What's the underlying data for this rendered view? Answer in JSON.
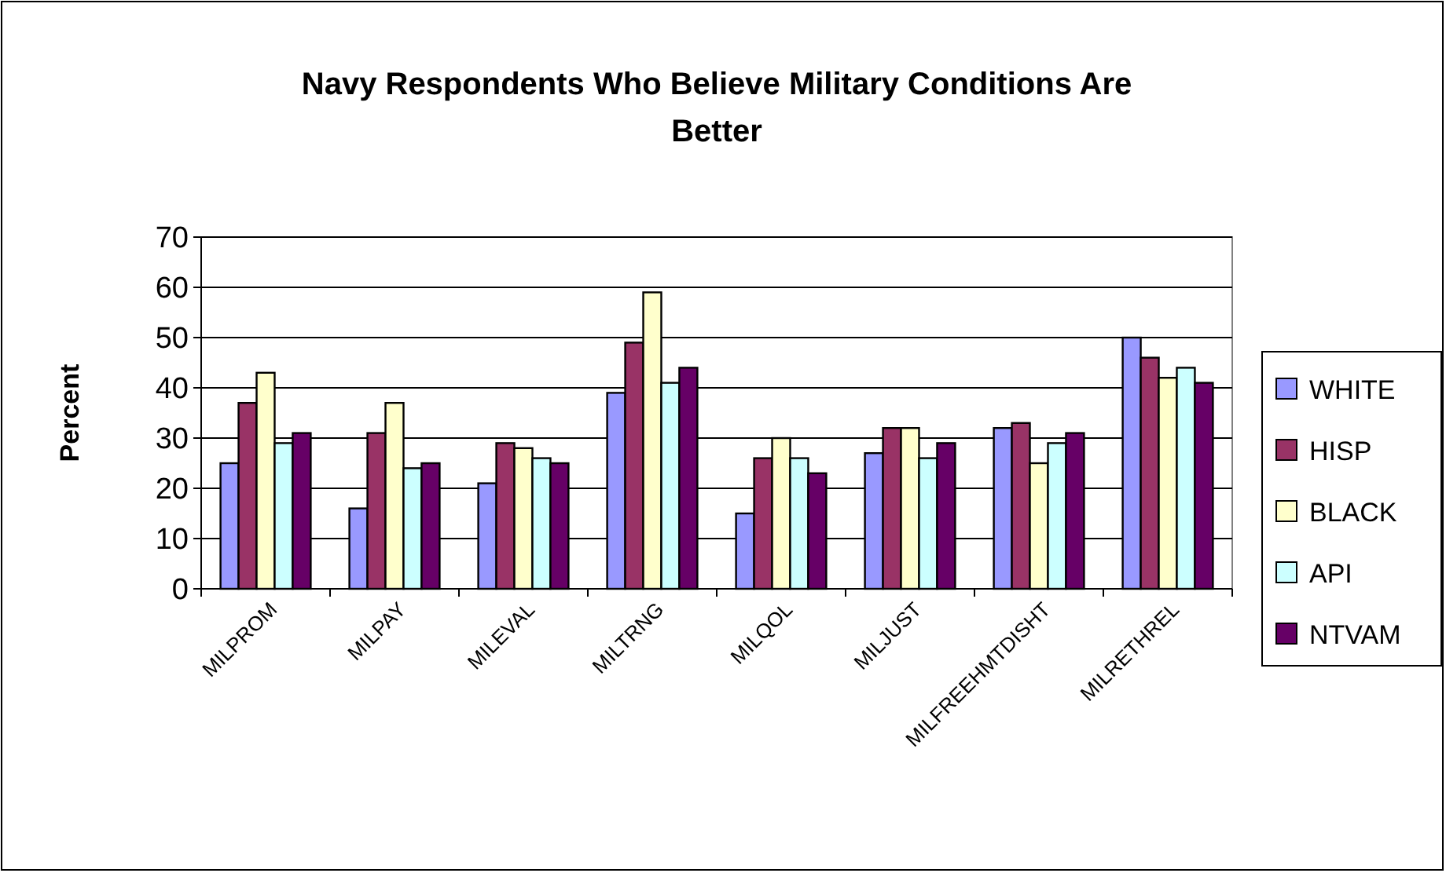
{
  "chart_data": {
    "type": "bar",
    "title": "Navy Respondents Who Believe Military Conditions Are Better",
    "ylabel": "Percent",
    "categories": [
      "MILPROM",
      "MILPAY",
      "MILEVAL",
      "MILTRNG",
      "MILQOL",
      "MILJUST",
      "MILFREEHMTDISHT",
      "MILRETHREL"
    ],
    "series": [
      {
        "name": "WHITE",
        "color": "#9999ff",
        "values": [
          25,
          16,
          21,
          39,
          15,
          27,
          32,
          50
        ]
      },
      {
        "name": "HISP",
        "color": "#993366",
        "values": [
          37,
          31,
          29,
          49,
          26,
          32,
          33,
          46
        ]
      },
      {
        "name": "BLACK",
        "color": "#ffffcc",
        "values": [
          43,
          37,
          28,
          59,
          30,
          32,
          25,
          42
        ]
      },
      {
        "name": "API",
        "color": "#ccffff",
        "values": [
          29,
          24,
          26,
          41,
          26,
          26,
          29,
          44
        ]
      },
      {
        "name": "NTVAM",
        "color": "#660066",
        "values": [
          31,
          25,
          25,
          44,
          23,
          29,
          31,
          41
        ]
      }
    ],
    "ylim": [
      0,
      70
    ],
    "yticks": [
      0,
      10,
      20,
      30,
      40,
      50,
      60,
      70
    ],
    "grid": "y",
    "legend": "right"
  }
}
